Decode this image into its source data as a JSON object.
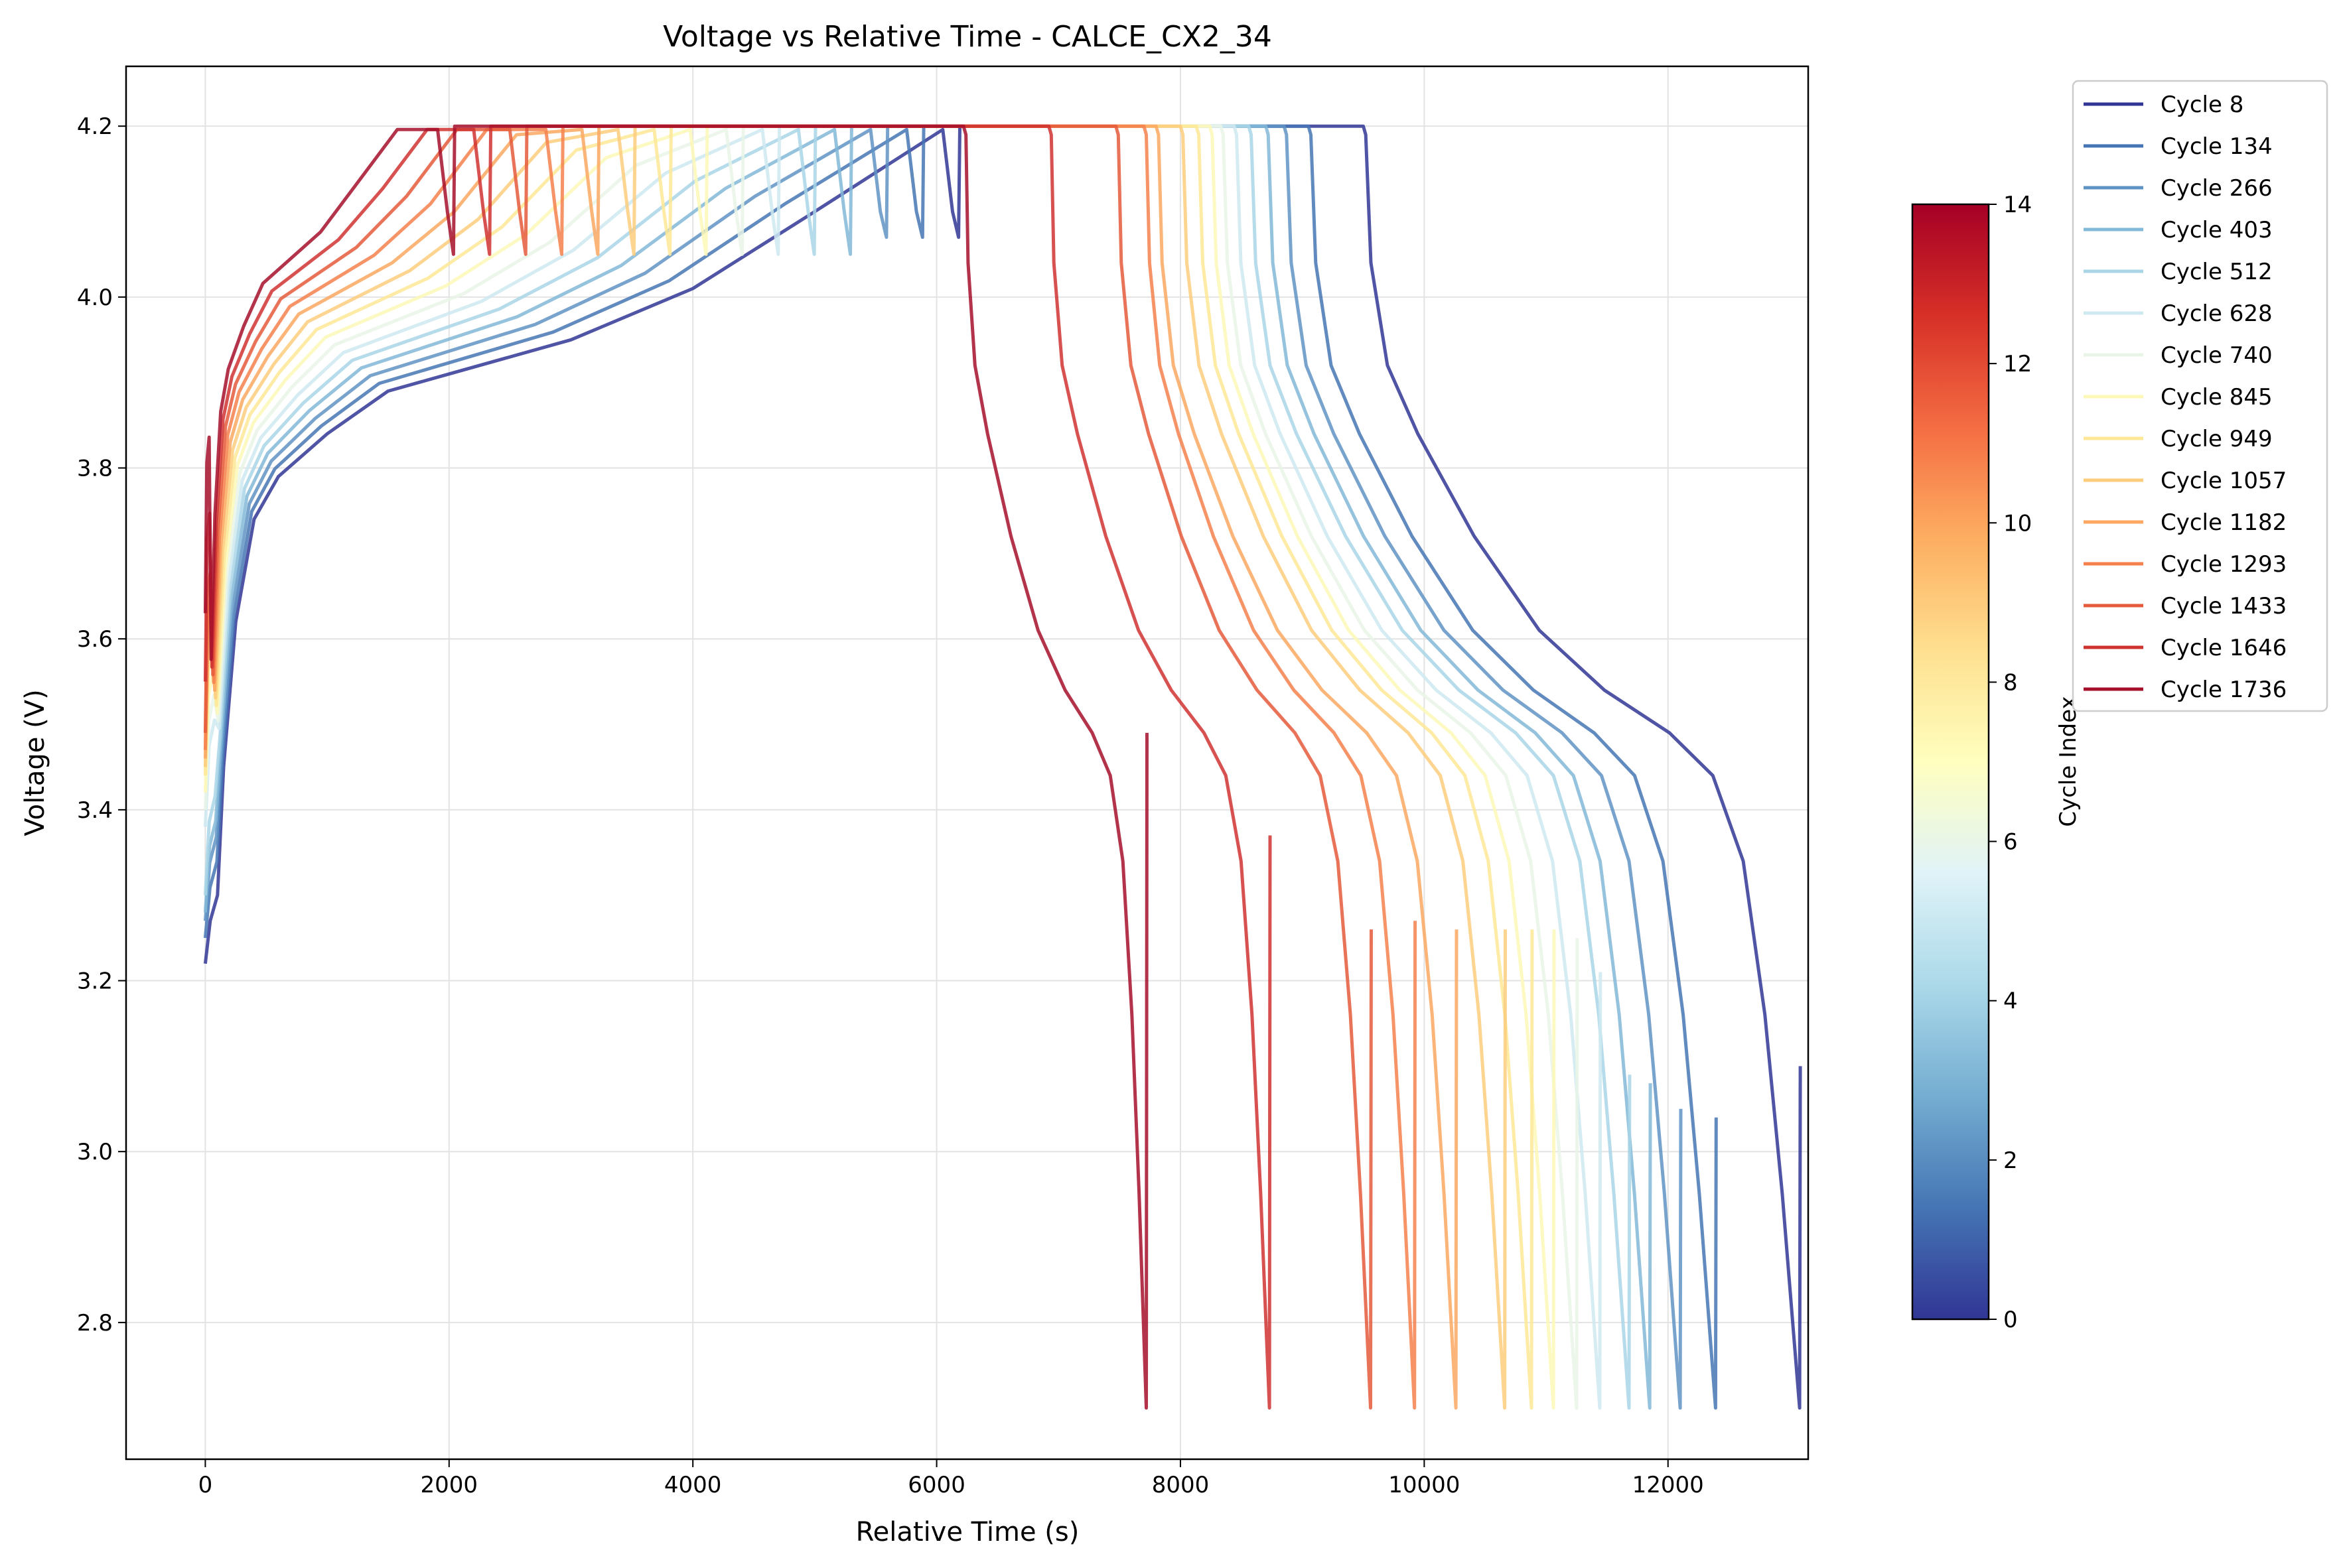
{
  "chart_data": {
    "type": "line",
    "title": "Voltage vs Relative Time - CALCE_CX2_34",
    "xlabel": "Relative Time (s)",
    "ylabel": "Voltage (V)",
    "xlim": [
      -650,
      13150
    ],
    "ylim": [
      2.64,
      4.27
    ],
    "xticks": [
      0,
      2000,
      4000,
      6000,
      8000,
      10000,
      12000
    ],
    "yticks": [
      2.8,
      3.0,
      3.2,
      3.4,
      3.6,
      3.8,
      4.0,
      4.2
    ],
    "xtick_labels": [
      "0",
      "2000",
      "4000",
      "6000",
      "8000",
      "10000",
      "12000"
    ],
    "ytick_labels": [
      "2.8",
      "3.0",
      "3.2",
      "3.4",
      "3.6",
      "3.8",
      "4.0",
      "4.2"
    ],
    "grid": true,
    "legend_position": "outside-right",
    "colorbar": {
      "label": "Cycle Index",
      "min": 0,
      "max": 14,
      "ticks": [
        "0",
        "2",
        "4",
        "6",
        "8",
        "10",
        "12",
        "14"
      ],
      "colormap": "RdYlBu_r",
      "stops": [
        "#313695",
        "#4575b4",
        "#74add1",
        "#abd9e9",
        "#e0f3f8",
        "#ffffbf",
        "#fee090",
        "#fdae61",
        "#f46d43",
        "#d73027",
        "#a50026"
      ]
    },
    "series": [
      {
        "name": "Cycle 8",
        "color": "#313695",
        "params": {
          "t_cv": 9500,
          "t_d": 13080,
          "v_start": 3.22,
          "v_rest": 3.1
        }
      },
      {
        "name": "Cycle 134",
        "color": "#4575b4",
        "params": {
          "t_cv": 9050,
          "t_d": 12390,
          "v_start": 3.25,
          "v_rest": 3.04
        }
      },
      {
        "name": "Cycle 266",
        "color": "#5f93c4",
        "params": {
          "t_cv": 8850,
          "t_d": 12100,
          "v_start": 3.27,
          "v_rest": 3.05
        }
      },
      {
        "name": "Cycle 403",
        "color": "#83b9d8",
        "params": {
          "t_cv": 8700,
          "t_d": 11850,
          "v_start": 3.28,
          "v_rest": 3.08
        }
      },
      {
        "name": "Cycle 512",
        "color": "#a9d5e6",
        "params": {
          "t_cv": 8560,
          "t_d": 11680,
          "v_start": 3.3,
          "v_rest": 3.09
        }
      },
      {
        "name": "Cycle 628",
        "color": "#cfe9f1",
        "params": {
          "t_cv": 8440,
          "t_d": 11440,
          "v_start": 3.38,
          "v_rest": 3.21
        }
      },
      {
        "name": "Cycle 740",
        "color": "#e9f5e6",
        "params": {
          "t_cv": 8330,
          "t_d": 11250,
          "v_start": 3.4,
          "v_rest": 3.25
        }
      },
      {
        "name": "Cycle 845",
        "color": "#fdf8b7",
        "params": {
          "t_cv": 8240,
          "t_d": 11060,
          "v_start": 3.42,
          "v_rest": 3.26
        }
      },
      {
        "name": "Cycle 949",
        "color": "#fee797",
        "params": {
          "t_cv": 8130,
          "t_d": 10880,
          "v_start": 3.44,
          "v_rest": 3.26
        }
      },
      {
        "name": "Cycle 1057",
        "color": "#fdcd7d",
        "params": {
          "t_cv": 8000,
          "t_d": 10660,
          "v_start": 3.45,
          "v_rest": 3.26
        }
      },
      {
        "name": "Cycle 1182",
        "color": "#fca862",
        "params": {
          "t_cv": 7800,
          "t_d": 10260,
          "v_start": 3.46,
          "v_rest": 3.26
        }
      },
      {
        "name": "Cycle 1293",
        "color": "#f4804c",
        "params": {
          "t_cv": 7700,
          "t_d": 9920,
          "v_start": 3.47,
          "v_rest": 3.27
        }
      },
      {
        "name": "Cycle 1433",
        "color": "#e55a3b",
        "params": {
          "t_cv": 7470,
          "t_d": 9560,
          "v_start": 3.49,
          "v_rest": 3.26
        }
      },
      {
        "name": "Cycle 1646",
        "color": "#cf3330",
        "params": {
          "t_cv": 6920,
          "t_d": 8730,
          "v_start": 3.55,
          "v_rest": 3.37
        }
      },
      {
        "name": "Cycle 1736",
        "color": "#a50f2a",
        "params": {
          "t_cv": 6220,
          "t_d": 7720,
          "v_start": 3.63,
          "v_rest": 3.49
        }
      }
    ]
  }
}
